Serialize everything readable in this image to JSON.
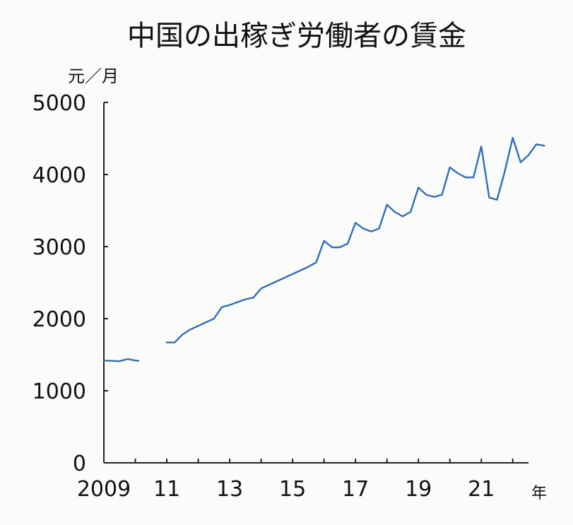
{
  "chart_data": {
    "type": "line",
    "title": "中国の出稼ぎ労働者の賃金",
    "ylabel": "元／月",
    "xlabel": "年",
    "ylim": [
      0,
      5000
    ],
    "xlim": [
      2009,
      2022.5
    ],
    "yticks": [
      0,
      1000,
      2000,
      3000,
      4000,
      5000
    ],
    "ytick_labels": [
      "0",
      "1000",
      "2000",
      "3000",
      "4000",
      "5000"
    ],
    "xticks": [
      2009,
      2011,
      2013,
      2015,
      2017,
      2019,
      2021
    ],
    "xtick_labels": [
      "2009",
      "11",
      "13",
      "15",
      "17",
      "19",
      "21"
    ],
    "grid": false,
    "series": [
      {
        "color": "#2f6fb6",
        "segments": [
          [
            [
              2009.0,
              1420
            ],
            [
              2009.5,
              1410
            ],
            [
              2009.75,
              1440
            ],
            [
              2010.0,
              1420
            ],
            [
              2010.1,
              1415
            ]
          ],
          [
            [
              2011.0,
              1670
            ],
            [
              2011.25,
              1670
            ],
            [
              2011.5,
              1780
            ],
            [
              2011.75,
              1850
            ],
            [
              2012.0,
              1900
            ],
            [
              2012.5,
              2000
            ],
            [
              2012.75,
              2160
            ],
            [
              2013.0,
              2190
            ],
            [
              2013.5,
              2270
            ],
            [
              2013.75,
              2290
            ],
            [
              2014.0,
              2420
            ],
            [
              2014.5,
              2520
            ],
            [
              2015.0,
              2620
            ],
            [
              2015.5,
              2720
            ],
            [
              2015.75,
              2780
            ],
            [
              2016.0,
              3080
            ],
            [
              2016.25,
              2990
            ],
            [
              2016.5,
              2990
            ],
            [
              2016.75,
              3040
            ],
            [
              2017.0,
              3330
            ],
            [
              2017.25,
              3250
            ],
            [
              2017.5,
              3210
            ],
            [
              2017.75,
              3250
            ],
            [
              2018.0,
              3580
            ],
            [
              2018.25,
              3480
            ],
            [
              2018.5,
              3420
            ],
            [
              2018.75,
              3480
            ],
            [
              2019.0,
              3820
            ],
            [
              2019.25,
              3720
            ],
            [
              2019.5,
              3690
            ],
            [
              2019.75,
              3720
            ],
            [
              2020.0,
              4100
            ],
            [
              2020.25,
              4020
            ],
            [
              2020.5,
              3960
            ],
            [
              2020.75,
              3960
            ],
            [
              2021.0,
              4390
            ],
            [
              2021.25,
              3680
            ],
            [
              2021.5,
              3650
            ],
            [
              2021.75,
              4050
            ],
            [
              2022.0,
              4510
            ],
            [
              2022.25,
              4170
            ],
            [
              2022.5,
              4270
            ],
            [
              2022.75,
              4420
            ],
            [
              2023.0,
              4400
            ]
          ]
        ]
      }
    ]
  }
}
